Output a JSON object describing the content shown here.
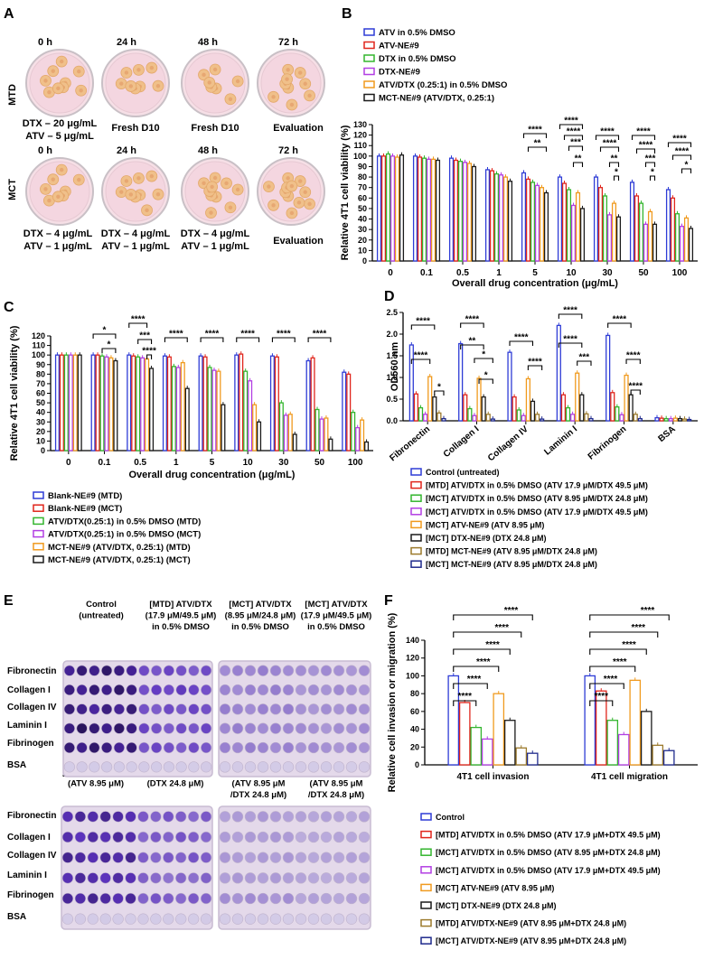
{
  "panels": {
    "A": "A",
    "B": "B",
    "C": "C",
    "D": "D",
    "E": "E",
    "F": "F"
  },
  "panelA": {
    "mtd_label": "MTD",
    "mct_label": "MCT",
    "times": [
      "0 h",
      "24 h",
      "48 h",
      "72 h"
    ],
    "mtd_captions": [
      "DTX – 20 μg/mL",
      "ATV –   5 μg/mL",
      "Fresh D10",
      "Fresh D10",
      "Evaluation"
    ],
    "mct_captions": [
      "DTX – 4 μg/mL",
      "ATV – 1 μg/mL",
      "DTX – 4 μg/mL",
      "ATV – 1 μg/mL",
      "DTX – 4 μg/mL",
      "ATV – 1 μg/mL",
      "Evaluation"
    ]
  },
  "colors": {
    "blue": "#2e3cd6",
    "red": "#e0251b",
    "green": "#33b52e",
    "purple": "#b23fe3",
    "orange": "#f09a1e",
    "black": "#1a1a1a",
    "brown": "#9c7a2c",
    "navy": "#1f2a8c"
  },
  "chart_data": [
    {
      "panel": "B",
      "type": "bar",
      "title": "",
      "ylabel": "Relative 4T1 cell viability (%)",
      "xlabel": "Overall drug concentration (μg/mL)",
      "ylim": [
        0,
        130
      ],
      "yticks": [
        0,
        10,
        20,
        30,
        40,
        50,
        60,
        70,
        80,
        90,
        100,
        110,
        120,
        130
      ],
      "categories": [
        "0",
        "0.1",
        "0.5",
        "1",
        "5",
        "10",
        "30",
        "50",
        "100"
      ],
      "series": [
        {
          "name": "ATV in 0.5% DMSO",
          "color": "#2e3cd6",
          "values": [
            100,
            100,
            98,
            87,
            84,
            80,
            80,
            75,
            68
          ]
        },
        {
          "name": "ATV-NE#9",
          "color": "#e0251b",
          "values": [
            100,
            99,
            96,
            86,
            78,
            74,
            70,
            62,
            60
          ]
        },
        {
          "name": "DTX in 0.5% DMSO",
          "color": "#33b52e",
          "values": [
            102,
            98,
            95,
            83,
            75,
            68,
            62,
            55,
            45
          ]
        },
        {
          "name": "DTX-NE#9",
          "color": "#b23fe3",
          "values": [
            100,
            97,
            94,
            82,
            72,
            53,
            44,
            35,
            33
          ]
        },
        {
          "name": "ATV/DTX (0.25:1) in 0.5% DMSO",
          "color": "#f09a1e",
          "values": [
            99,
            97,
            93,
            80,
            70,
            65,
            55,
            47,
            41
          ]
        },
        {
          "name": "MCT-NE#9 (ATV/DTX, 0.25:1)",
          "color": "#1a1a1a",
          "values": [
            101,
            96,
            90,
            76,
            65,
            50,
            42,
            35,
            31
          ]
        }
      ],
      "significance": [
        "****",
        "**",
        "****",
        "****",
        "***",
        "**",
        "****",
        "****",
        "**",
        "*",
        "****",
        "****",
        "***",
        "*",
        "****",
        "****",
        "*"
      ]
    },
    {
      "panel": "C",
      "type": "bar",
      "ylabel": "Relative 4T1 cell viability (%)",
      "xlabel": "Overall drug concentration (μg/mL)",
      "ylim": [
        0,
        120
      ],
      "yticks": [
        0,
        10,
        20,
        30,
        40,
        50,
        60,
        70,
        80,
        90,
        100,
        110,
        120
      ],
      "categories": [
        "0",
        "0.1",
        "0.5",
        "1",
        "5",
        "10",
        "30",
        "50",
        "100"
      ],
      "series": [
        {
          "name": "Blank-NE#9 (MTD)",
          "color": "#2e3cd6",
          "values": [
            100,
            100,
            100,
            99,
            99,
            100,
            99,
            94,
            82
          ]
        },
        {
          "name": "Blank-NE#9 (MCT)",
          "color": "#e0251b",
          "values": [
            100,
            100,
            99,
            98,
            98,
            101,
            98,
            97,
            80
          ]
        },
        {
          "name": "ATV/DTX(0.25:1) in 0.5% DMSO (MTD)",
          "color": "#33b52e",
          "values": [
            100,
            99,
            98,
            88,
            87,
            83,
            50,
            43,
            40
          ]
        },
        {
          "name": "ATV/DTX(0.25:1) in 0.5% DMSO (MCT)",
          "color": "#b23fe3",
          "values": [
            100,
            98,
            97,
            87,
            84,
            73,
            37,
            33,
            24
          ]
        },
        {
          "name": "MCT-NE#9 (ATV/DTX, 0.25:1) (MTD)",
          "color": "#f09a1e",
          "values": [
            100,
            97,
            96,
            92,
            83,
            48,
            38,
            34,
            32
          ]
        },
        {
          "name": "MCT-NE#9 (ATV/DTX, 0.25:1) (MCT)",
          "color": "#1a1a1a",
          "values": [
            100,
            94,
            86,
            65,
            48,
            30,
            17,
            12,
            9
          ]
        }
      ],
      "significance": [
        "*",
        "*",
        "****",
        "***",
        "****",
        "****",
        "****",
        "****",
        "****",
        "****"
      ]
    },
    {
      "panel": "D",
      "type": "bar",
      "ylabel": "OD560 nm",
      "ylim": [
        0,
        2.5
      ],
      "yticks": [
        "0.0",
        "0.5",
        "1.0",
        "1.5",
        "2.0",
        "2.5"
      ],
      "categories": [
        "Fibronectin",
        "Collagen I",
        "Collagen IV",
        "Laminin I",
        "Fibrinogen",
        "BSA"
      ],
      "series": [
        {
          "name": "Control (untreated)",
          "color": "#2e3cd6",
          "values": [
            1.75,
            1.78,
            1.58,
            2.2,
            1.97,
            0.07
          ]
        },
        {
          "name": "[MTD] ATV/DTX in 0.5% DMSO (ATV 17.9 μM/DTX 49.5 μM)",
          "color": "#e0251b",
          "values": [
            0.62,
            0.6,
            0.55,
            0.6,
            0.65,
            0.06
          ]
        },
        {
          "name": "[MCT] ATV/DTX in 0.5% DMSO (ATV 8.95 μM/DTX 24.8 μM)",
          "color": "#33b52e",
          "values": [
            0.3,
            0.28,
            0.25,
            0.3,
            0.32,
            0.05
          ]
        },
        {
          "name": "[MCT] ATV/DTX in 0.5% DMSO (ATV 17.9 μM/DTX 49.5 μM)",
          "color": "#b23fe3",
          "values": [
            0.15,
            0.12,
            0.12,
            0.15,
            0.14,
            0.05
          ]
        },
        {
          "name": "[MCT] ATV-NE#9 (ATV 8.95 μM)",
          "color": "#f09a1e",
          "values": [
            1.02,
            0.98,
            0.97,
            1.1,
            1.05,
            0.06
          ]
        },
        {
          "name": "[MCT] DTX-NE#9 (DTX 24.8 μM)",
          "color": "#1a1a1a",
          "values": [
            0.55,
            0.55,
            0.45,
            0.6,
            0.6,
            0.05
          ]
        },
        {
          "name": "[MTD] MCT-NE#9 (ATV 8.95 μM/DTX 24.8 μM)",
          "color": "#9c7a2c",
          "values": [
            0.18,
            0.15,
            0.15,
            0.16,
            0.15,
            0.04
          ]
        },
        {
          "name": "[MCT] MCT-NE#9 (ATV 8.95 μM/DTX 24.8 μM)",
          "color": "#1f2a8c",
          "values": [
            0.05,
            0.04,
            0.04,
            0.05,
            0.05,
            0.03
          ]
        }
      ],
      "significance": [
        "****",
        "****",
        "*",
        "****",
        "**",
        "*",
        "****",
        "****",
        "****",
        "****",
        "***",
        "****",
        "****",
        "****",
        "*"
      ]
    },
    {
      "panel": "F",
      "type": "bar",
      "ylabel": "Relative cell invasion or migration (%)",
      "ylim": [
        0,
        140
      ],
      "yticks": [
        0,
        20,
        40,
        60,
        80,
        100,
        120,
        140
      ],
      "categories": [
        "4T1 cell invasion",
        "4T1 cell migration"
      ],
      "series": [
        {
          "name": "Control",
          "color": "#2e3cd6",
          "values": [
            100,
            100
          ]
        },
        {
          "name": "[MTD] ATV/DTX in 0.5% DMSO (ATV 17.9 μM+DTX 49.5 μM)",
          "color": "#e0251b",
          "values": [
            70,
            83
          ]
        },
        {
          "name": "[MCT] ATV/DTX in 0.5% DMSO (ATV 8.95 μM+DTX 24.8 μM)",
          "color": "#33b52e",
          "values": [
            42,
            50
          ]
        },
        {
          "name": "[MCT] ATV/DTX in 0.5% DMSO (ATV 17.9 μM+DTX 49.5 μM)",
          "color": "#b23fe3",
          "values": [
            29,
            34
          ]
        },
        {
          "name": "[MCT] ATV-NE#9 (ATV 8.95 μM)",
          "color": "#f09a1e",
          "values": [
            80,
            95
          ]
        },
        {
          "name": "[MCT] DTX-NE#9 (DTX 24.8 μM)",
          "color": "#1a1a1a",
          "values": [
            50,
            60
          ]
        },
        {
          "name": "[MTD] ATV/DTX-NE#9 (ATV 8.95 μM+DTX 24.8 μM)",
          "color": "#9c7a2c",
          "values": [
            19,
            22
          ]
        },
        {
          "name": "[MCT] ATV/DTX-NE#9 (ATV 8.95 μM+DTX 24.8 μM)",
          "color": "#1f2a8c",
          "values": [
            13,
            16
          ]
        }
      ],
      "significance": [
        "****",
        "****",
        "****",
        "****",
        "****",
        "****",
        "****",
        "****",
        "****",
        "****",
        "****",
        "****"
      ]
    }
  ],
  "panelE": {
    "top_headers": [
      "Control",
      "(untreated)",
      "[MTD] ATV/DTX",
      "(17.9 μM/49.5 μM)",
      "in 0.5% DMSO",
      "[MCT] ATV/DTX",
      "(8.95 μM/24.8 μM)",
      "in 0.5% DMSO",
      "[MCT] ATV/DTX",
      "(17.9 μM/49.5 μM)",
      "in 0.5% DMSO"
    ],
    "bottom_headers": [
      "[MCT] ATV-NE#9",
      "(ATV 8.95 μM)",
      "[MCT] DTX-NE#9",
      "(DTX 24.8 μM)",
      "[MTD] MCT-NE#9",
      "(ATV 8.95 μM",
      "/DTX 24.8 μM)",
      "[MCT] MCT-NE#9",
      "(ATV 8.95 μM",
      "/DTX 24.8 μM)"
    ],
    "rows": [
      "Fibronectin",
      "Collagen I",
      "Collagen IV",
      "Laminin I",
      "Fibrinogen",
      "BSA"
    ]
  }
}
